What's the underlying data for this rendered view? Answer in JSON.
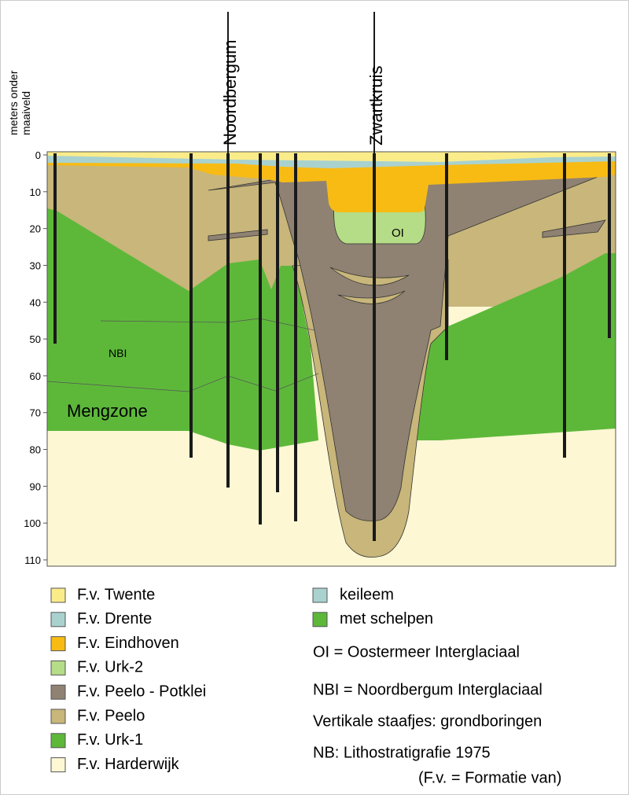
{
  "axis": {
    "label": [
      "meters onder",
      "maaiveld"
    ],
    "ticks": [
      0,
      10,
      20,
      30,
      40,
      50,
      60,
      70,
      80,
      90,
      100,
      110
    ]
  },
  "profile_labels": [
    "Noordbergum",
    "Zwartkruis"
  ],
  "zone_labels": {
    "nbi": "NBI",
    "mengzone": "Mengzone",
    "oi": "OI"
  },
  "legend": {
    "formations": [
      {
        "label": "F.v. Twente",
        "color": "#fbec8a"
      },
      {
        "label": "F.v. Drente",
        "color": "#a9d2cf"
      },
      {
        "label": "F.v. Eindhoven",
        "color": "#f8bb14"
      },
      {
        "label": "F.v. Urk-2",
        "color": "#b5dc86"
      },
      {
        "label": "F.v. Peelo - Potklei",
        "color": "#8f8273"
      },
      {
        "label": "F.v. Peelo",
        "color": "#c8b67a"
      },
      {
        "label": "F.v. Urk-1",
        "color": "#5db83a"
      },
      {
        "label": "F.v. Harderwijk",
        "color": "#fdf7d4"
      }
    ],
    "symbols": [
      {
        "label": "keileem",
        "color": "#a9d2cf"
      },
      {
        "label": "met schelpen",
        "color": "#5db83a"
      }
    ],
    "notes": [
      "OI = Oostermeer Interglaciaal",
      "NBI = Noordbergum Interglaciaal",
      "Vertikale staafjes: grondboringen",
      "NB: Lithostratigrafie 1975",
      "(F.v. = Formatie van)"
    ]
  }
}
